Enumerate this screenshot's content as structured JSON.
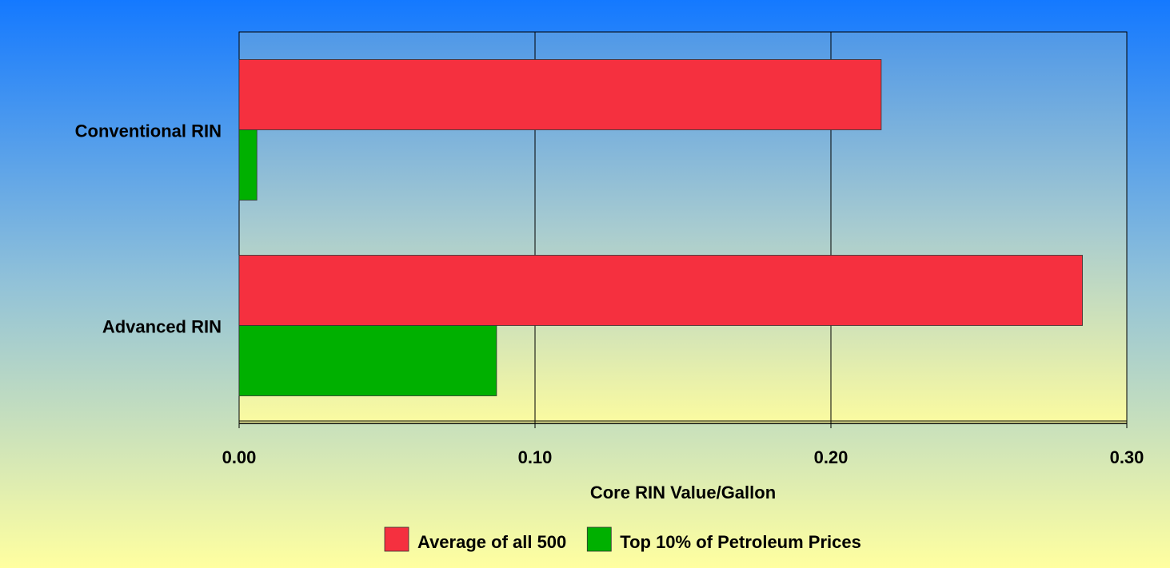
{
  "chart_data": {
    "type": "bar",
    "categories": [
      "Conventional RIN",
      "Advanced RIN"
    ],
    "series": [
      {
        "name": "Average of all 500",
        "color": "#f5303f",
        "values": [
          0.217,
          0.285
        ]
      },
      {
        "name": "Top 10% of Petroleum Prices",
        "color": "#00b000",
        "values": [
          0.006,
          0.087
        ]
      }
    ],
    "xlabel": "Core RIN Value/Gallon",
    "xlim": [
      0,
      0.3
    ],
    "xticks": [
      {
        "value": 0,
        "label": "0.00"
      },
      {
        "value": 0.1,
        "label": "0.10"
      },
      {
        "value": 0.2,
        "label": "0.20"
      },
      {
        "value": 0.3,
        "label": "0.30"
      }
    ],
    "grid": true
  }
}
